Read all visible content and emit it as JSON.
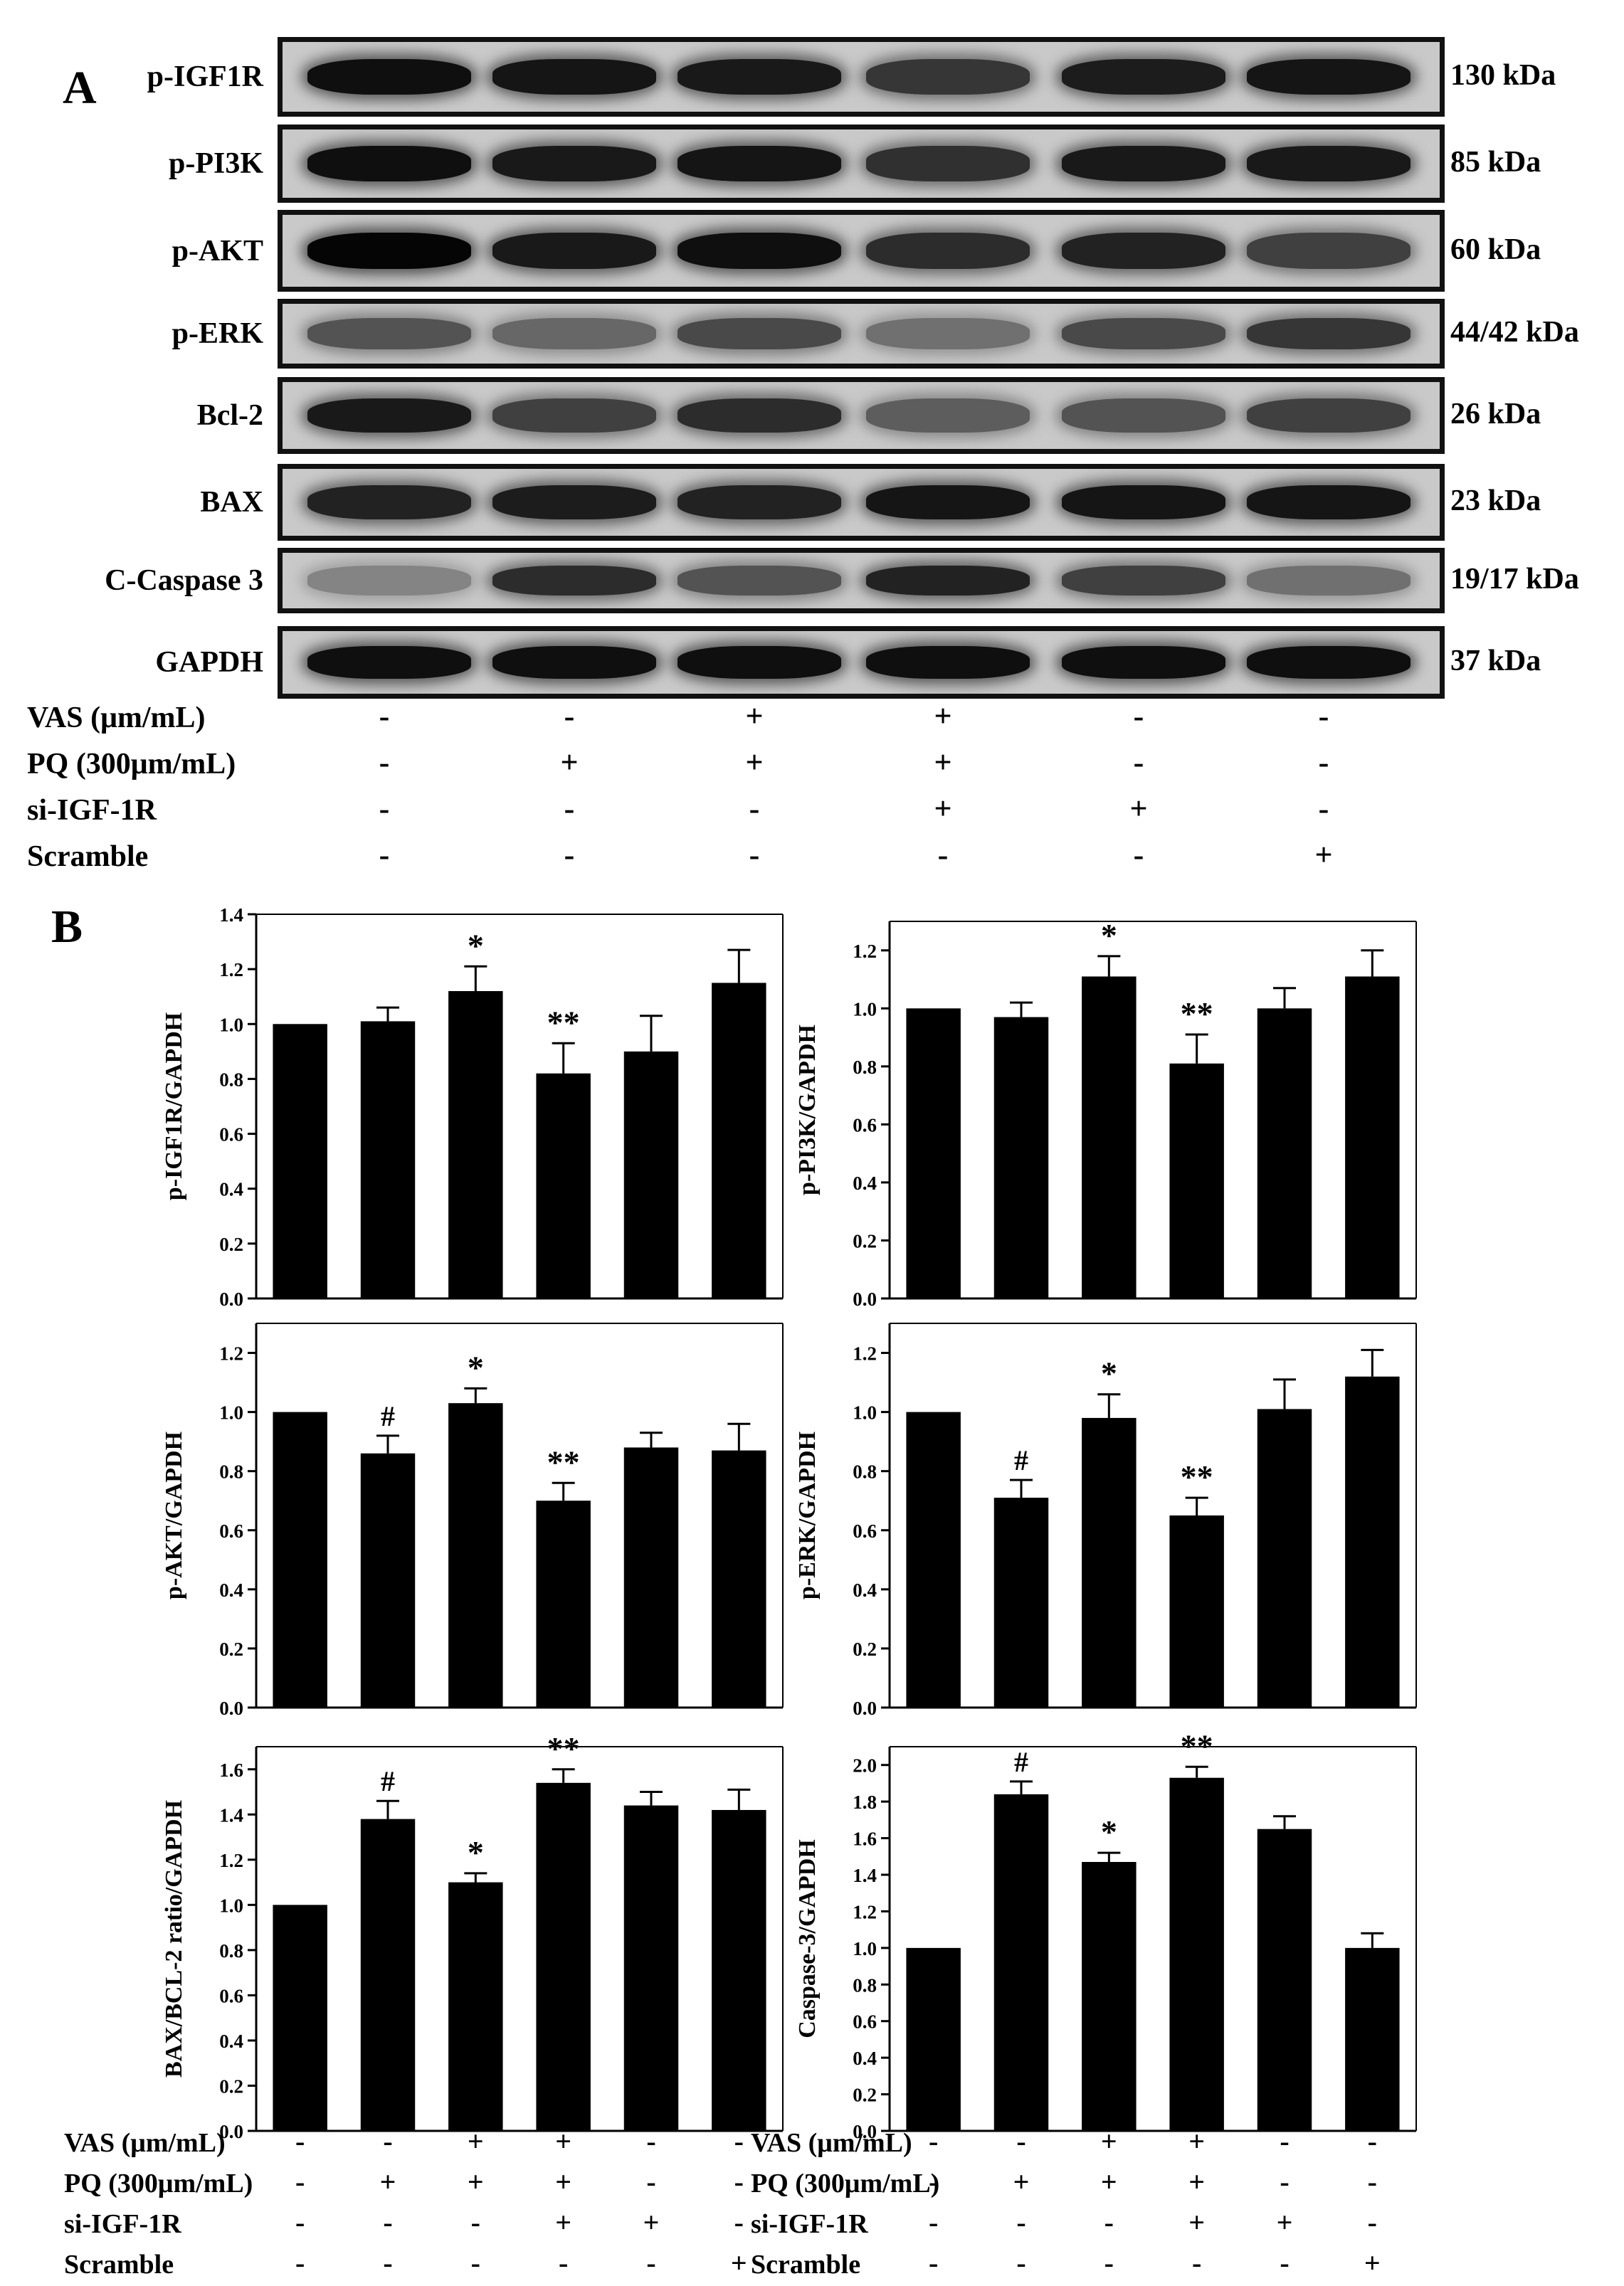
{
  "panelA": {
    "letter": "A",
    "blots": [
      {
        "label": "p-IGF1R",
        "kda": "130 kDa",
        "intensity": [
          0.95,
          0.92,
          0.9,
          0.75,
          0.88,
          0.92
        ]
      },
      {
        "label": "p-PI3K",
        "kda": "85 kDa",
        "intensity": [
          0.95,
          0.9,
          0.92,
          0.78,
          0.9,
          0.9
        ]
      },
      {
        "label": "p-AKT",
        "kda": "60 kDa",
        "intensity": [
          1.0,
          0.9,
          0.95,
          0.8,
          0.85,
          0.7
        ]
      },
      {
        "label": "p-ERK",
        "kda": "44/42 kDa",
        "intensity": [
          0.6,
          0.5,
          0.65,
          0.45,
          0.65,
          0.75
        ]
      },
      {
        "label": "Bcl-2",
        "kda": "26 kDa",
        "intensity": [
          0.9,
          0.7,
          0.8,
          0.55,
          0.6,
          0.7
        ]
      },
      {
        "label": "BAX",
        "kda": "23 kDa",
        "intensity": [
          0.85,
          0.88,
          0.85,
          0.92,
          0.92,
          0.92
        ]
      },
      {
        "label": "C-Caspase 3",
        "kda": "19/17 kDa",
        "intensity": [
          0.35,
          0.8,
          0.6,
          0.85,
          0.7,
          0.45
        ]
      },
      {
        "label": "GAPDH",
        "kda": "37 kDa",
        "intensity": [
          0.95,
          0.95,
          0.95,
          0.95,
          0.95,
          0.95
        ]
      }
    ],
    "conditions": [
      {
        "label": "VAS (μm/mL)",
        "signs": [
          "-",
          "-",
          "+",
          "+",
          "-",
          "-"
        ]
      },
      {
        "label": "PQ (300μm/mL)",
        "signs": [
          "-",
          "+",
          "+",
          "+",
          "-",
          "-"
        ]
      },
      {
        "label": "si-IGF-1R",
        "signs": [
          "-",
          "-",
          "-",
          "+",
          "+",
          "-"
        ]
      },
      {
        "label": "Scramble",
        "signs": [
          "-",
          "-",
          "-",
          "-",
          "-",
          "+"
        ]
      }
    ]
  },
  "panelB": {
    "letter": "B",
    "conditions_left": [
      {
        "label": "VAS (μm/mL)",
        "signs": [
          "-",
          "-",
          "+",
          "+",
          "-",
          "-"
        ]
      },
      {
        "label": "PQ (300μm/mL)",
        "signs": [
          "-",
          "+",
          "+",
          "+",
          "-",
          "-"
        ]
      },
      {
        "label": "si-IGF-1R",
        "signs": [
          "-",
          "-",
          "-",
          "+",
          "+",
          "-"
        ]
      },
      {
        "label": "Scramble",
        "signs": [
          "-",
          "-",
          "-",
          "-",
          "-",
          "+"
        ]
      }
    ],
    "conditions_right": [
      {
        "label": "VAS (μm/mL)",
        "signs": [
          "-",
          "-",
          "+",
          "+",
          "-",
          "-"
        ]
      },
      {
        "label": "PQ (300μm/mL)",
        "signs": [
          "-",
          "+",
          "+",
          "+",
          "-",
          "-"
        ]
      },
      {
        "label": "si-IGF-1R",
        "signs": [
          "-",
          "-",
          "-",
          "+",
          "+",
          "-"
        ]
      },
      {
        "label": "Scramble",
        "signs": [
          "-",
          "-",
          "-",
          "-",
          "-",
          "+"
        ]
      }
    ]
  },
  "chart_data": [
    {
      "type": "bar",
      "ylabel": "p-IGF1R/GAPDH",
      "ylim": [
        0,
        1.4
      ],
      "ticks": [
        0.0,
        0.2,
        0.4,
        0.6,
        0.8,
        1.0,
        1.2,
        1.4
      ],
      "values": [
        1.0,
        1.01,
        1.12,
        0.82,
        0.9,
        1.15
      ],
      "errors": [
        0,
        0.05,
        0.09,
        0.11,
        0.13,
        0.12
      ],
      "annotations": [
        "",
        "",
        "*",
        "**",
        "",
        ""
      ]
    },
    {
      "type": "bar",
      "ylabel": "p-PI3K/GAPDH",
      "ylim": [
        0,
        1.3
      ],
      "ticks": [
        0.0,
        0.2,
        0.4,
        0.6,
        0.8,
        1.0,
        1.2
      ],
      "values": [
        1.0,
        0.97,
        1.11,
        0.81,
        1.0,
        1.11
      ],
      "errors": [
        0,
        0.05,
        0.07,
        0.1,
        0.07,
        0.09
      ],
      "annotations": [
        "",
        "",
        "*",
        "**",
        "",
        ""
      ]
    },
    {
      "type": "bar",
      "ylabel": "p-AKT/GAPDH",
      "ylim": [
        0,
        1.3
      ],
      "ticks": [
        0.0,
        0.2,
        0.4,
        0.6,
        0.8,
        1.0,
        1.2
      ],
      "values": [
        1.0,
        0.86,
        1.03,
        0.7,
        0.88,
        0.87
      ],
      "errors": [
        0,
        0.06,
        0.05,
        0.06,
        0.05,
        0.09
      ],
      "annotations": [
        "",
        "#",
        "*",
        "**",
        "",
        ""
      ]
    },
    {
      "type": "bar",
      "ylabel": "p-ERK/GAPDH",
      "ylim": [
        0,
        1.3
      ],
      "ticks": [
        0.0,
        0.2,
        0.4,
        0.6,
        0.8,
        1.0,
        1.2
      ],
      "values": [
        1.0,
        0.71,
        0.98,
        0.65,
        1.01,
        1.12
      ],
      "errors": [
        0,
        0.06,
        0.08,
        0.06,
        0.1,
        0.09
      ],
      "annotations": [
        "",
        "#",
        "*",
        "**",
        "",
        ""
      ]
    },
    {
      "type": "bar",
      "ylabel": "BAX/BCL-2 ratio/GAPDH",
      "ylim": [
        0,
        1.7
      ],
      "ticks": [
        0.0,
        0.2,
        0.4,
        0.6,
        0.8,
        1.0,
        1.2,
        1.4,
        1.6
      ],
      "values": [
        1.0,
        1.38,
        1.1,
        1.54,
        1.44,
        1.42
      ],
      "errors": [
        0,
        0.08,
        0.04,
        0.06,
        0.06,
        0.09
      ],
      "annotations": [
        "",
        "#",
        "*",
        "**",
        "",
        ""
      ]
    },
    {
      "type": "bar",
      "ylabel": "Caspase-3/GAPDH",
      "ylim": [
        0,
        2.1
      ],
      "ticks": [
        0.0,
        0.2,
        0.4,
        0.6,
        0.8,
        1.0,
        1.2,
        1.4,
        1.6,
        1.8,
        2.0
      ],
      "values": [
        1.0,
        1.84,
        1.47,
        1.93,
        1.65,
        1.0
      ],
      "errors": [
        0,
        0.07,
        0.05,
        0.06,
        0.07,
        0.08
      ],
      "annotations": [
        "",
        "#",
        "*",
        "**",
        "",
        ""
      ]
    }
  ]
}
